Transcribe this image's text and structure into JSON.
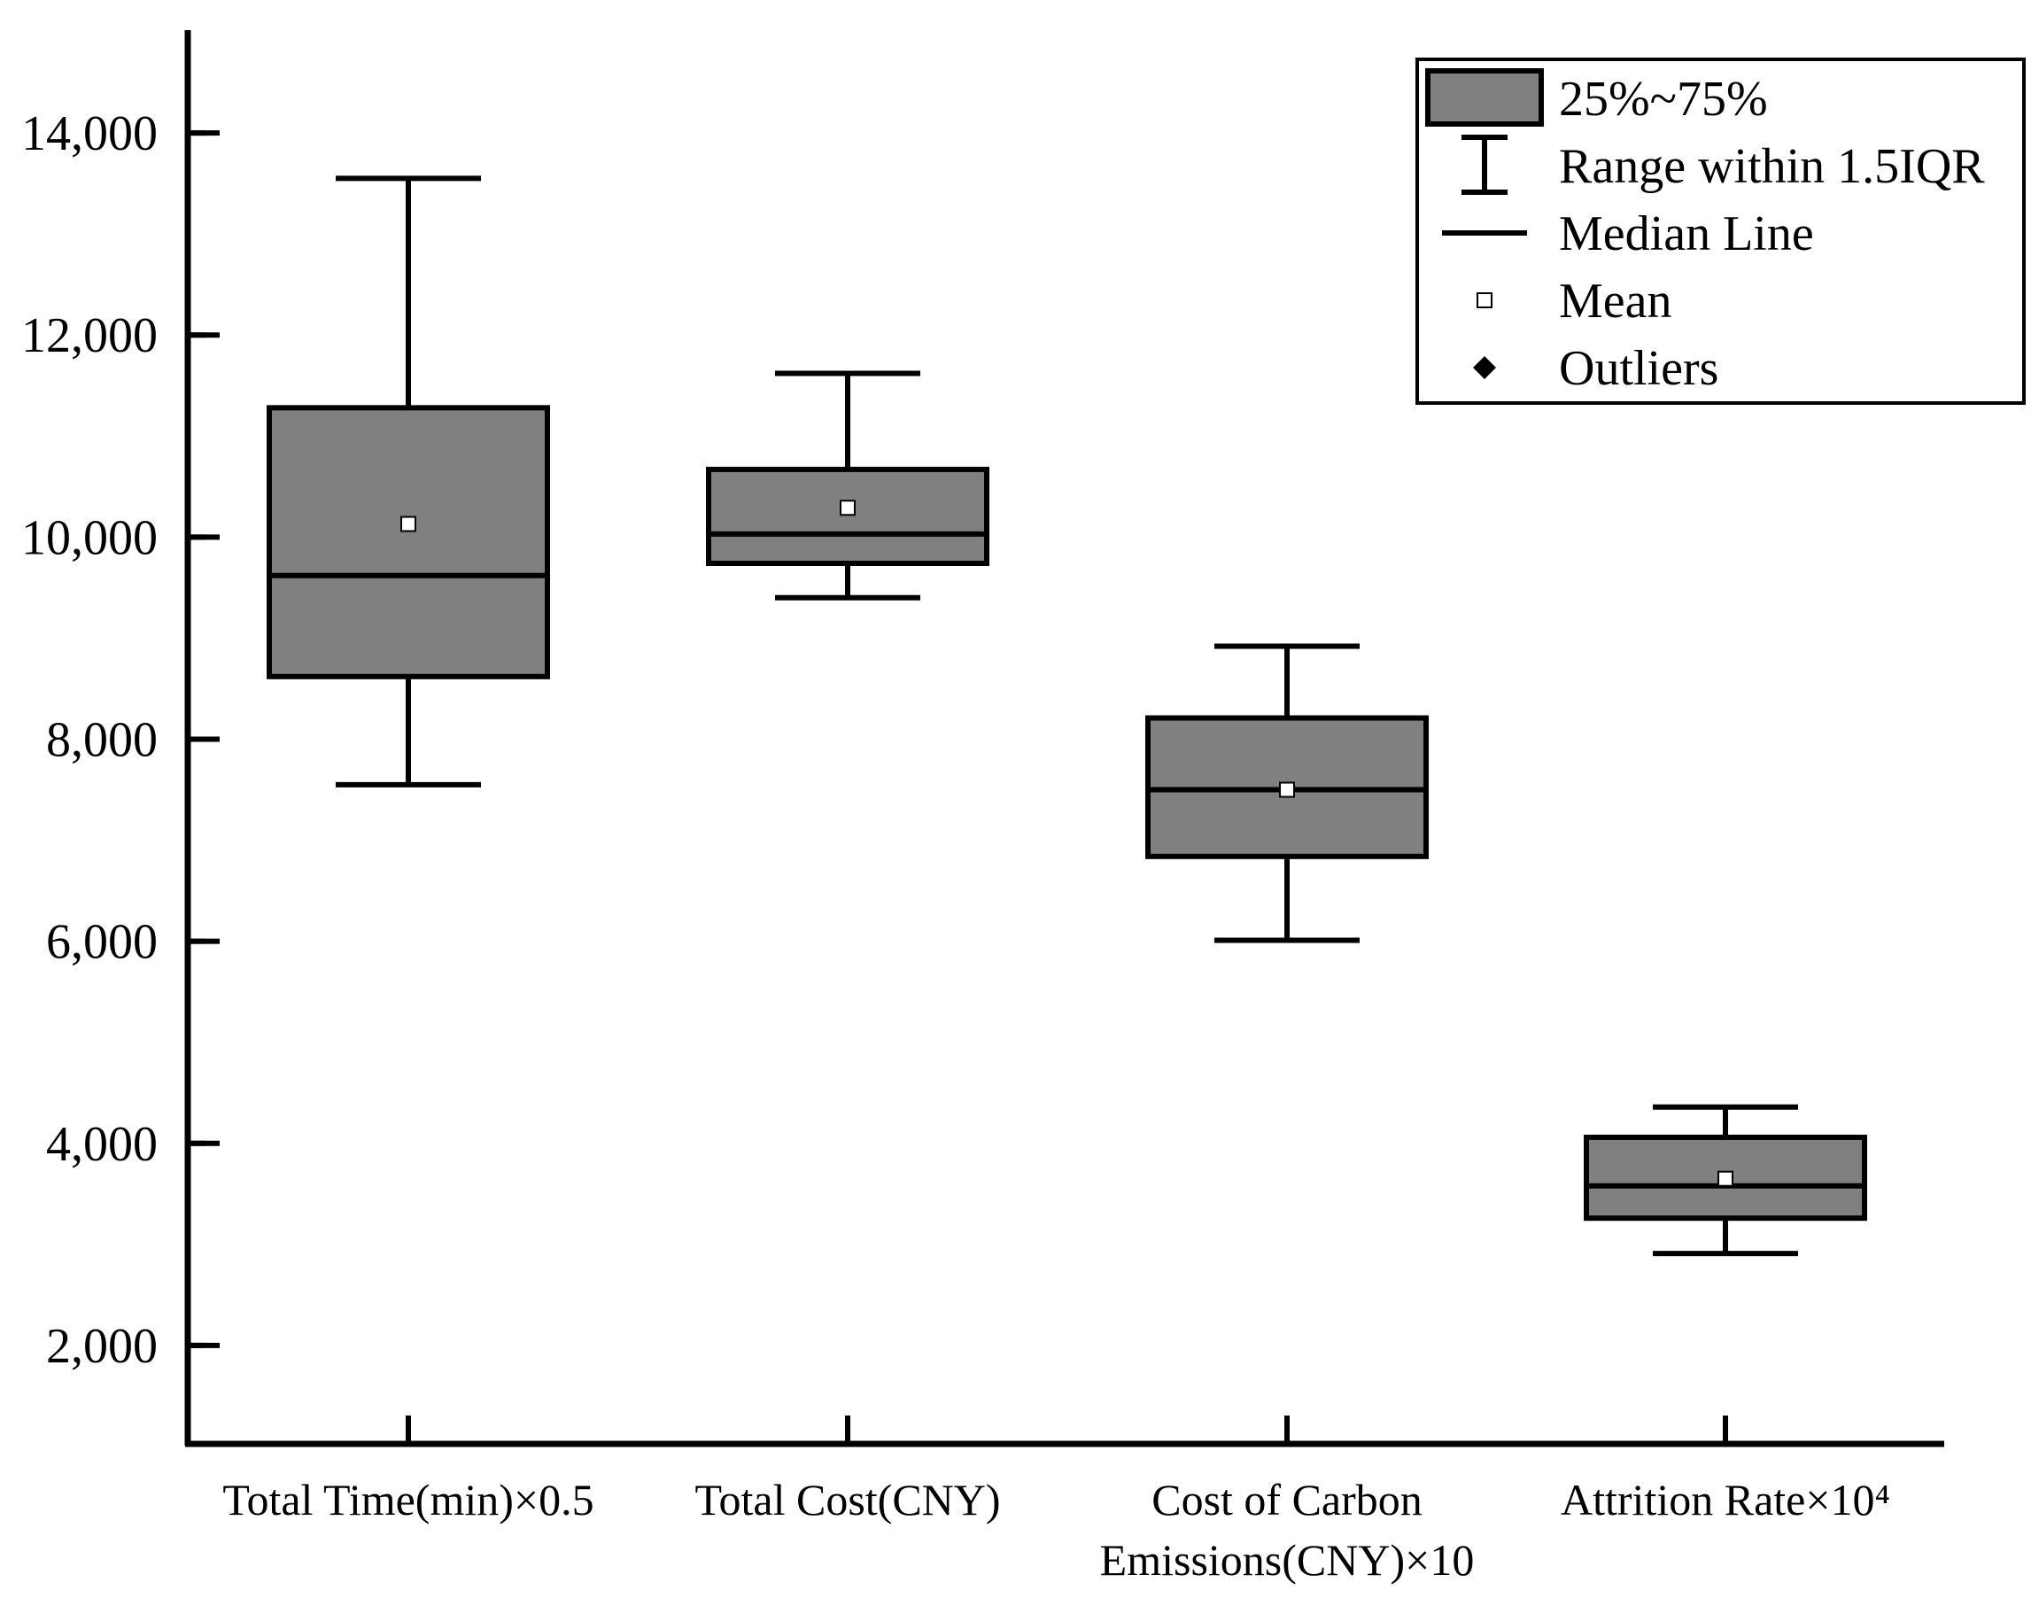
{
  "chart_data": {
    "type": "box",
    "title": "",
    "xlabel": "",
    "ylabel": "",
    "ylim": [
      1000,
      15000
    ],
    "yticks": [
      2000,
      4000,
      6000,
      8000,
      10000,
      12000,
      14000
    ],
    "ytick_labels": [
      "2,000",
      "4,000",
      "6,000",
      "8,000",
      "10,000",
      "12,000",
      "14,000"
    ],
    "series": [
      {
        "name": "Total Time(min)×0.5",
        "label_lines": [
          "Total Time(min)×0.5"
        ],
        "whisker_low": 7550,
        "q1": 8620,
        "median": 9620,
        "q3": 11280,
        "whisker_high": 13550,
        "mean": 10130
      },
      {
        "name": "Total Cost(CNY)",
        "label_lines": [
          "Total Cost(CNY)"
        ],
        "whisker_low": 9400,
        "q1": 9740,
        "median": 10030,
        "q3": 10670,
        "whisker_high": 11620,
        "mean": 10290
      },
      {
        "name": "Cost of Carbon Emissions(CNY)×10",
        "label_lines": [
          "Cost of Carbon",
          "Emissions(CNY)×10"
        ],
        "whisker_low": 6010,
        "q1": 6840,
        "median": 7500,
        "q3": 8210,
        "whisker_high": 8920,
        "mean": 7500
      },
      {
        "name": "Attrition Rate×10⁴",
        "label_lines": [
          "Attrition Rate×10⁴"
        ],
        "whisker_low": 2910,
        "q1": 3260,
        "median": 3580,
        "q3": 4060,
        "whisker_high": 4360,
        "mean": 3650
      }
    ],
    "legend": {
      "position": "top-right",
      "items": [
        {
          "symbol": "box",
          "label": "25%~75%"
        },
        {
          "symbol": "whisker",
          "label": "Range within 1.5IQR"
        },
        {
          "symbol": "median",
          "label": "Median Line"
        },
        {
          "symbol": "mean",
          "label": "Mean"
        },
        {
          "symbol": "outlier",
          "label": "Outliers"
        }
      ]
    },
    "colors": {
      "box_fill": "#808080",
      "stroke": "#000000",
      "mean_fill": "#ffffff",
      "background": "#ffffff"
    }
  }
}
